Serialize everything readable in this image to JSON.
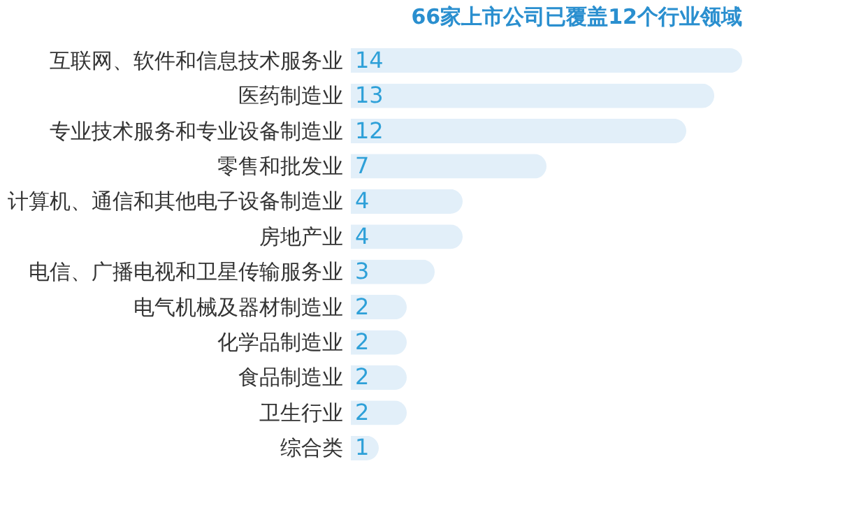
{
  "chart_data": {
    "type": "bar",
    "orientation": "horizontal",
    "title": "66家上市公司已覆盖12个行业领域",
    "categories": [
      "互联网、软件和信息技术服务业",
      "医药制造业",
      "专业技术服务和专业设备制造业",
      "零售和批发业",
      "计算机、通信和其他电子设备制造业",
      "房地产业",
      "电信、广播电视和卫星传输服务业",
      "电气机械及器材制造业",
      "化学品制造业",
      "食品制造业",
      "卫生行业",
      "综合类"
    ],
    "values": [
      14,
      13,
      12,
      7,
      4,
      4,
      3,
      2,
      2,
      2,
      2,
      1
    ],
    "color": "#e2eff9",
    "data_labels": true
  }
}
